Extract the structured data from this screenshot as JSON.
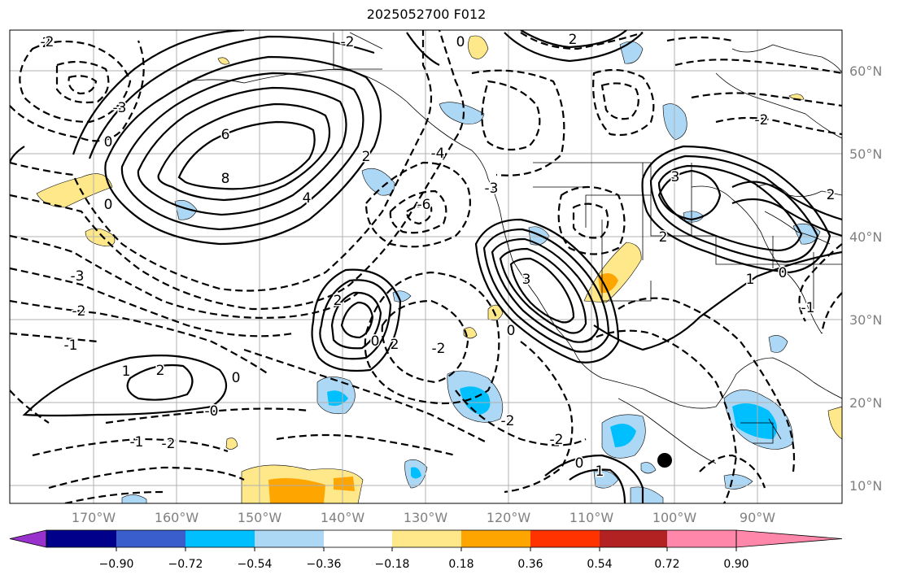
{
  "title": "2025052700 F012",
  "lat_labels": [
    "60°N",
    "50°N",
    "40°N",
    "30°N",
    "20°N",
    "10°N"
  ],
  "lon_labels": [
    "170°W",
    "160°W",
    "150°W",
    "140°W",
    "130°W",
    "120°W",
    "110°W",
    "100°W",
    "90°W"
  ],
  "colorbar": {
    "ticks": [
      "−0.90",
      "−0.72",
      "−0.54",
      "−0.36",
      "−0.18",
      "0.18",
      "0.36",
      "0.54",
      "0.72",
      "0.90"
    ],
    "colors": [
      "#9932cc",
      "#00008b",
      "#3a5fcd",
      "#00bfff",
      "#add8f5",
      "#ffffff",
      "#ffe88a",
      "#ffa500",
      "#ff3300",
      "#b22222",
      "#ff88aa"
    ]
  },
  "contour_labels": [
    {
      "text": "2"
    },
    {
      "text": "-2"
    },
    {
      "text": "-3"
    },
    {
      "text": "0"
    },
    {
      "text": "6"
    },
    {
      "text": "8"
    },
    {
      "text": "4"
    },
    {
      "text": "2"
    },
    {
      "text": "0"
    },
    {
      "text": "-3"
    },
    {
      "text": "-2"
    },
    {
      "text": "-1"
    },
    {
      "text": "1"
    },
    {
      "text": "2"
    },
    {
      "text": "0"
    },
    {
      "text": "-0"
    },
    {
      "text": "-1"
    },
    {
      "text": "-2"
    },
    {
      "text": "2"
    },
    {
      "text": "0"
    },
    {
      "text": "2"
    },
    {
      "text": "-6"
    },
    {
      "text": "-4"
    },
    {
      "text": "-3"
    },
    {
      "text": "3"
    },
    {
      "text": "-2"
    },
    {
      "text": "0"
    },
    {
      "text": "-2"
    },
    {
      "text": "1"
    },
    {
      "text": "0"
    },
    {
      "text": "3"
    },
    {
      "text": "2"
    },
    {
      "text": "0"
    },
    {
      "text": "1"
    },
    {
      "text": "-2"
    },
    {
      "text": "2"
    },
    {
      "text": "-2"
    },
    {
      "text": "-1"
    },
    {
      "text": "0"
    },
    {
      "text": "2"
    },
    {
      "text": "-2"
    }
  ],
  "marker": {
    "label": "station-dot"
  }
}
